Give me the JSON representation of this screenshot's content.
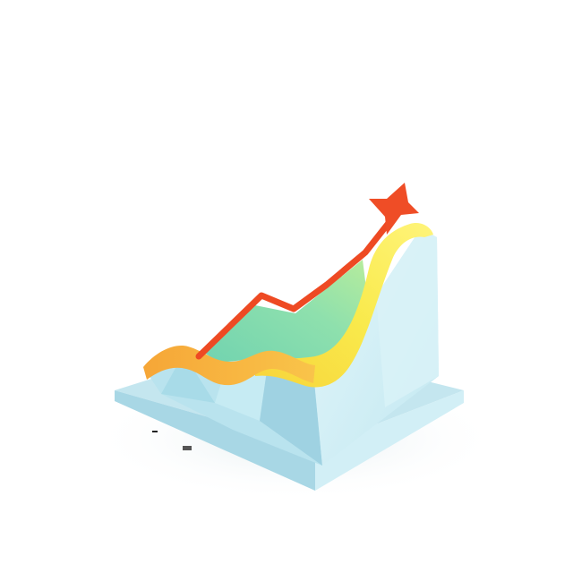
{
  "scene": {
    "subject": "isometric-3d-growth-chart-illustration",
    "background_color": "#ffffff"
  },
  "colors": {
    "base_top": "#bfe4ee",
    "base_front": "#a9d8e6",
    "base_right": "#cfeef6",
    "block_left": "#b6e1ec",
    "block_front": "#9fd3e3",
    "block_right": "#d6f1f7",
    "green_area": "#7ad7b5",
    "yellow_band": "#f7e850",
    "orange_band": "#f7a93c",
    "red_arrow": "#ef4a24"
  },
  "icons": {
    "arrow_head": "red-star-arrowhead-icon",
    "axis_marks": "small-axis-tick-icons"
  }
}
